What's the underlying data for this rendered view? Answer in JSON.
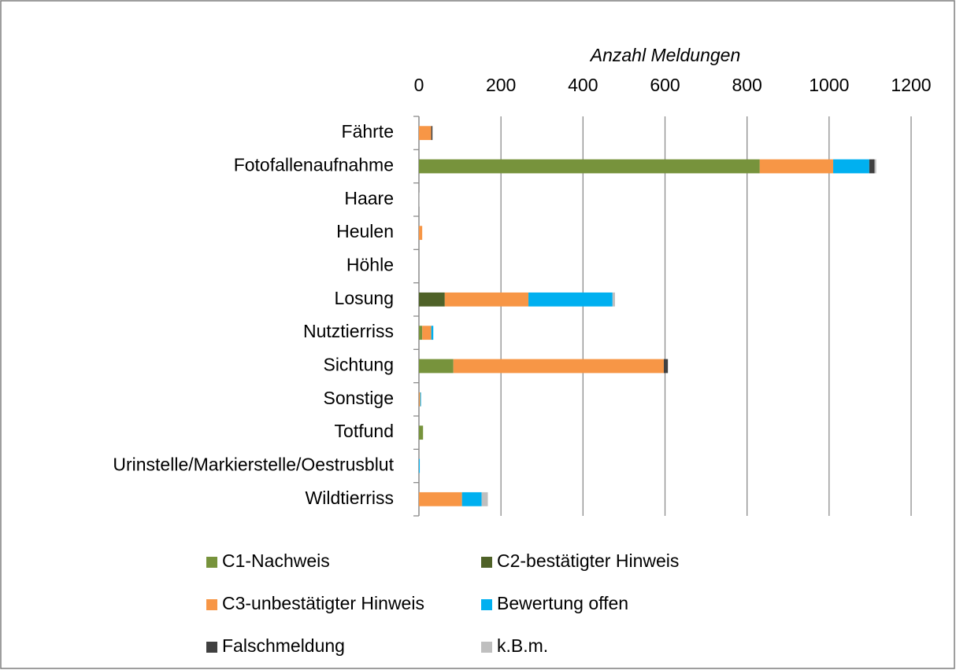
{
  "chart_data": {
    "type": "stacked_barh",
    "x_label": "Anzahl Meldungen",
    "categories": [
      "Fährte",
      "Fotofallenaufnahme",
      "Haare",
      "Heulen",
      "Höhle",
      "Losung",
      "Nutztierriss",
      "Sichtung",
      "Sonstige",
      "Totfund",
      "Urinstelle/Markierstelle/Oestrusblut",
      "Wildtierriss"
    ],
    "series": [
      {
        "name": "C1-Nachweis",
        "color": "#77933c",
        "values": [
          0,
          831,
          0,
          0,
          0,
          0,
          8,
          84,
          0,
          10,
          0,
          0
        ]
      },
      {
        "name": "C2-bestätigter Hinweis",
        "color": "#4f6228",
        "values": [
          0,
          0,
          0,
          0,
          0,
          63,
          0,
          0,
          0,
          0,
          0,
          0
        ]
      },
      {
        "name": "C3-unbestätigter Hinweis",
        "color": "#f79646",
        "values": [
          30,
          179,
          0,
          8,
          0,
          204,
          22,
          513,
          3,
          0,
          0,
          105
        ]
      },
      {
        "name": "Bewertung offen",
        "color": "#00b0f0",
        "values": [
          0,
          88,
          0,
          0,
          0,
          205,
          5,
          0,
          2,
          0,
          2,
          48
        ]
      },
      {
        "name": "Falschmeldung",
        "color": "#404040",
        "values": [
          3,
          13,
          0,
          0,
          0,
          0,
          0,
          10,
          0,
          0,
          0,
          0
        ]
      },
      {
        "name": "k.B.m.",
        "color": "#bfbfbf",
        "values": [
          0,
          4,
          1,
          0,
          0,
          6,
          0,
          0,
          0,
          0,
          0,
          15
        ]
      }
    ],
    "xlim": [
      0,
      1200
    ],
    "xticks": [
      0,
      200,
      400,
      600,
      800,
      1000,
      1200
    ],
    "grid": true,
    "legend": "bottom"
  }
}
